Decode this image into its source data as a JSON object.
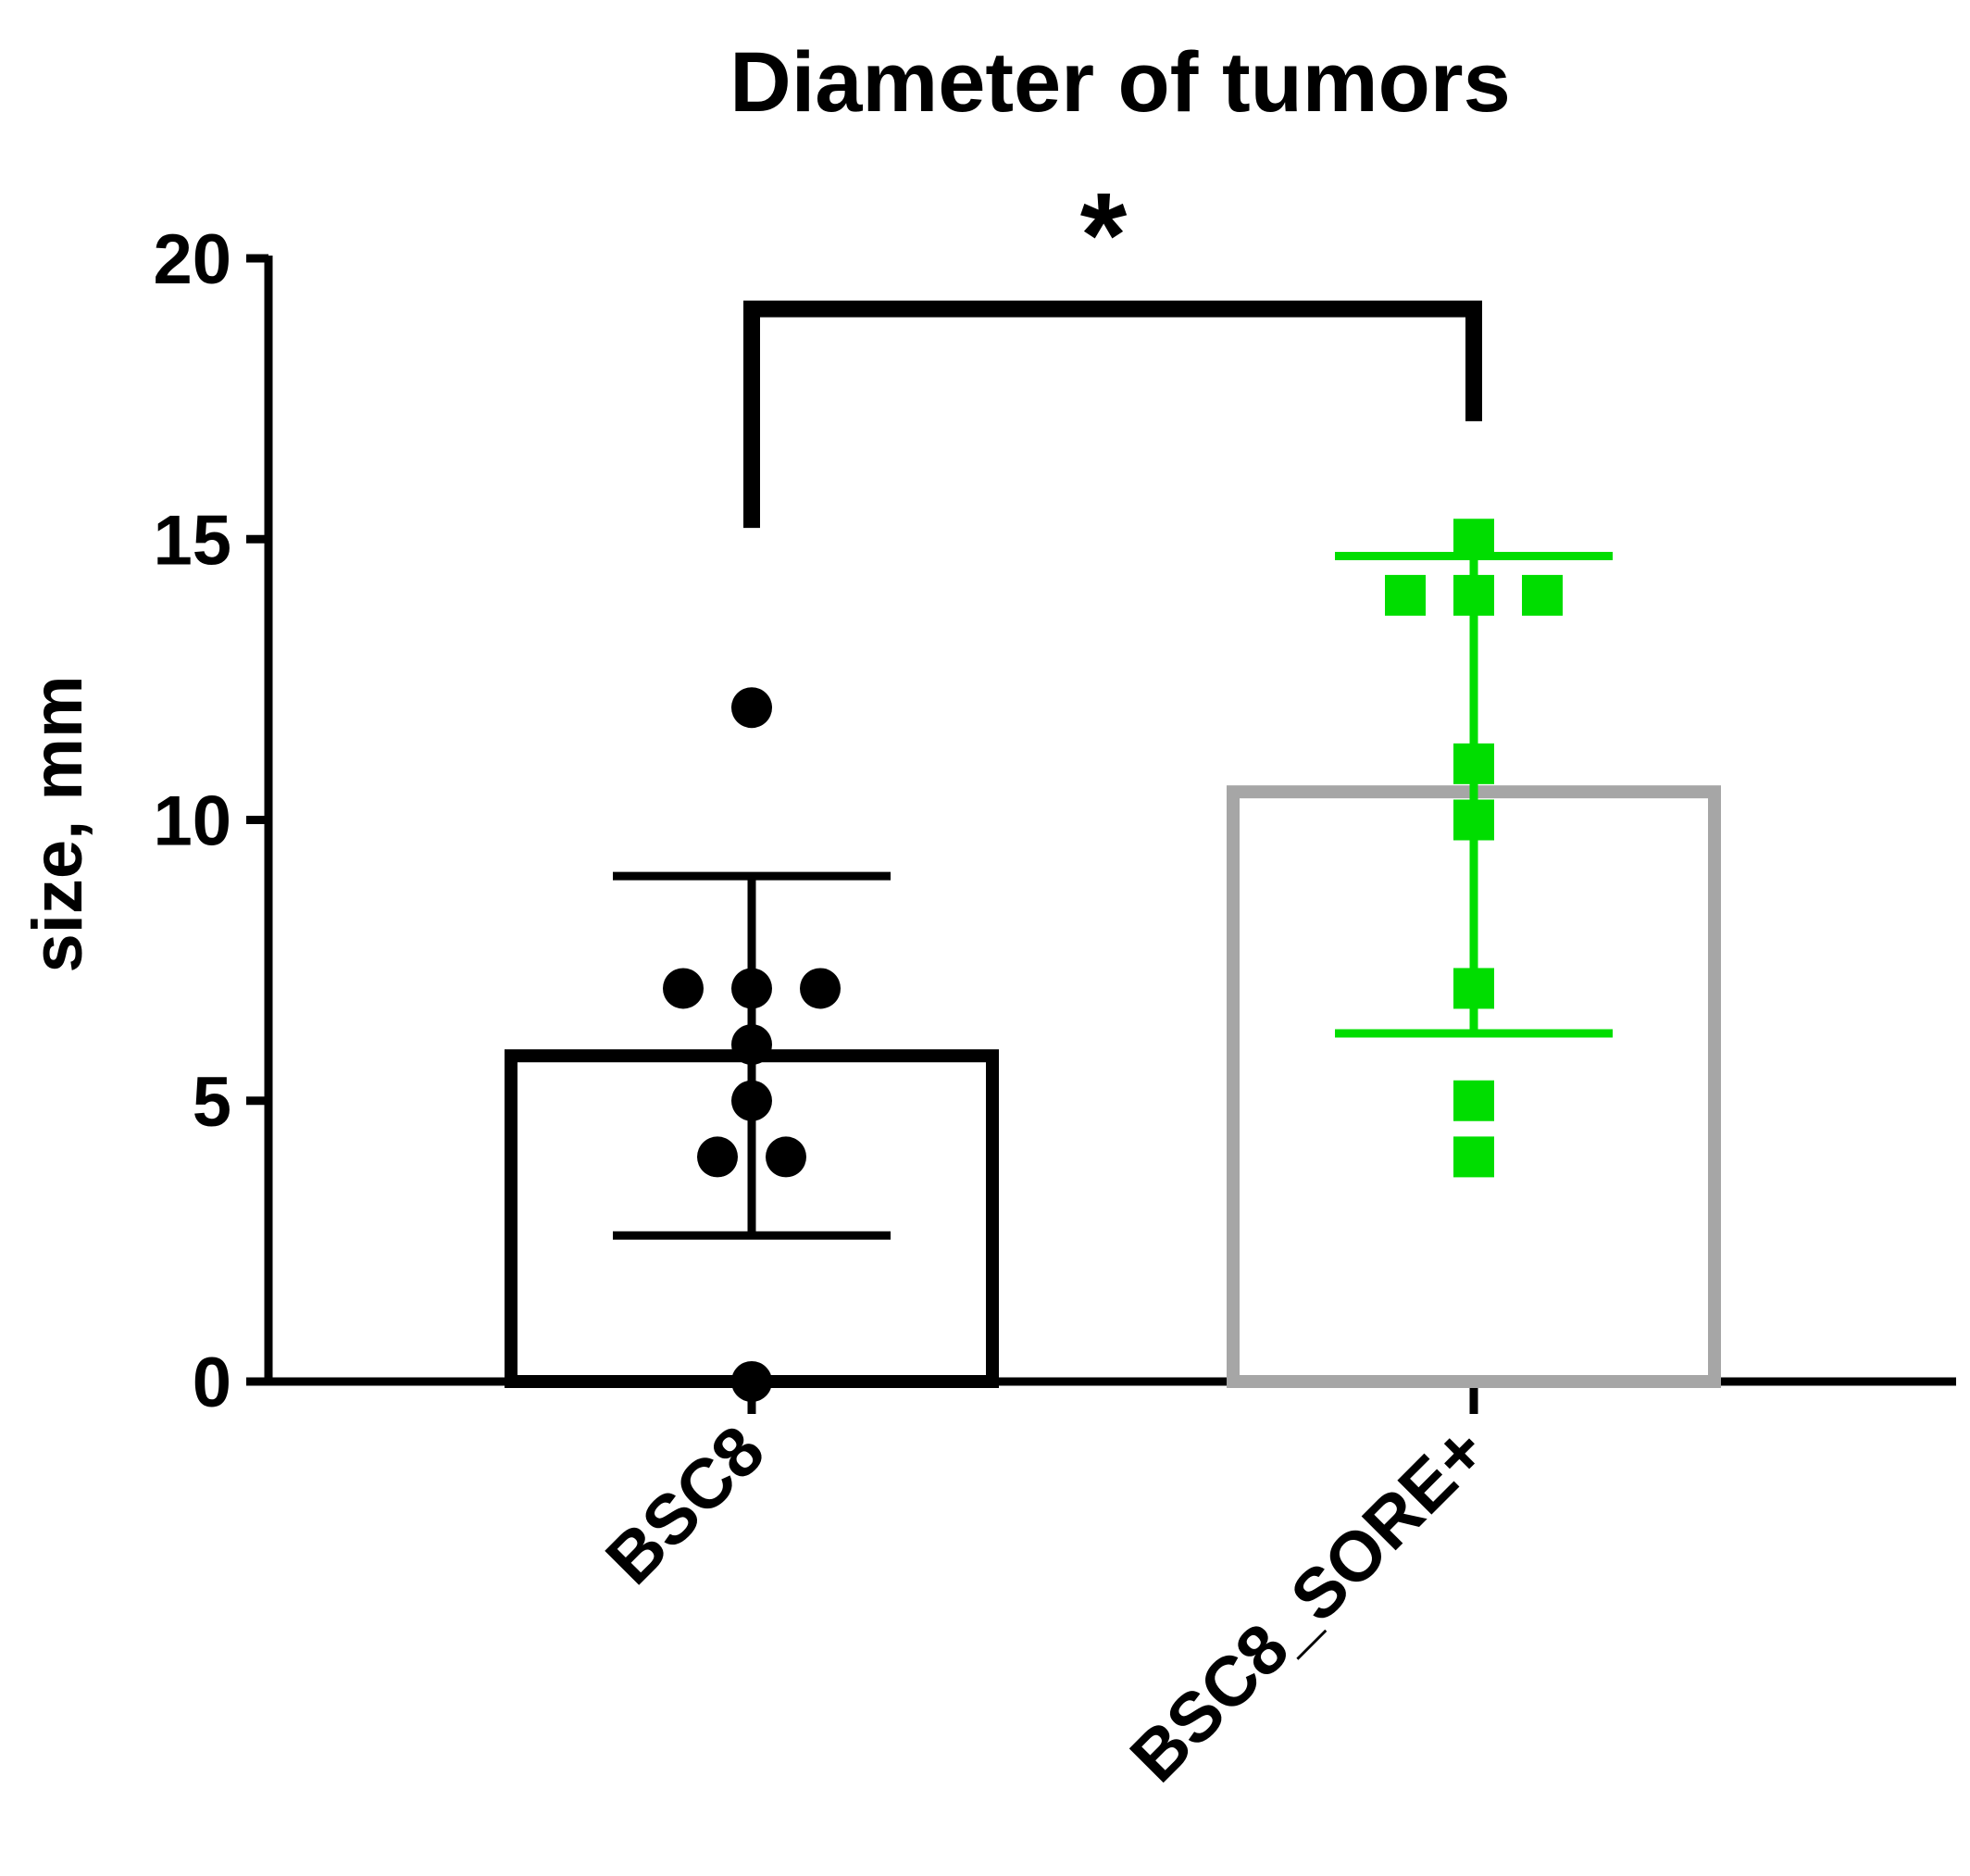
{
  "chart_data": {
    "type": "bar",
    "title": "Diameter of tumors",
    "xlabel": "",
    "ylabel": "size, mm",
    "ylim": [
      0,
      20
    ],
    "yticks": [
      "0",
      "5",
      "10",
      "15",
      "20"
    ],
    "categories": [
      "BSC8",
      "BSC8_SORE+"
    ],
    "bars": [
      {
        "category": "BSC8",
        "mean": 5.8,
        "error_lower": 2.6,
        "error_upper": 9.0,
        "outline_color": "#000000",
        "point_color": "#000000",
        "marker": "circle",
        "points": [
          0,
          4,
          4,
          5,
          6,
          7,
          7,
          7,
          12
        ]
      },
      {
        "category": "BSC8_SORE+",
        "mean": 10.5,
        "error_lower": 6.2,
        "error_upper": 14.7,
        "outline_color": "#a6a6a6",
        "point_color": "#00dd00",
        "marker": "square",
        "points": [
          4,
          5,
          7,
          10,
          11,
          14,
          14,
          14,
          15
        ]
      }
    ],
    "significance": {
      "label": "*",
      "between": [
        "BSC8",
        "BSC8_SORE+"
      ],
      "bracket_y": 19.1,
      "left_drop_to": 15.2,
      "right_drop_to": 17.1
    },
    "grid": false,
    "legend": "none"
  }
}
